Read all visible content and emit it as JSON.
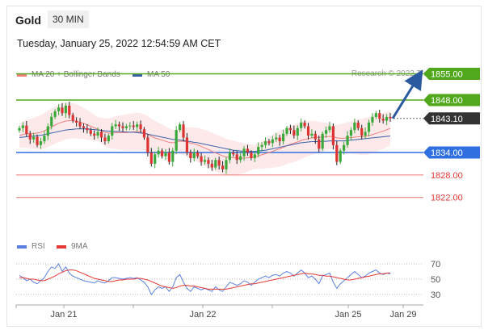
{
  "header": {
    "instrument": "Gold",
    "timeframe": "30 MIN",
    "datetime": "Tuesday, January 25, 2022 12:54:59 AM CET",
    "credit": "Research © 2022 Trading Central"
  },
  "legend_price": [
    {
      "label": "MA 20 + Bollinger Bands",
      "color": "#f08080"
    },
    {
      "label": "MA 50",
      "color": "#3a5fa8"
    }
  ],
  "legend_rsi": [
    {
      "label": "RSI",
      "color": "#5b7fe0"
    },
    {
      "label": "9MA",
      "color": "#e53935"
    }
  ],
  "chart_data": [
    {
      "type": "candlestick",
      "title": "",
      "ylim": [
        1819,
        1857
      ],
      "x_ticks": [
        "Jan 21",
        "Jan 22",
        "Jan 25",
        "Jan 29"
      ],
      "current_price": {
        "value": 1843.1,
        "label": "1843.10",
        "color": "#333333"
      },
      "levels": [
        {
          "value": 1855.0,
          "label": "1855.00",
          "color": "#52a81c",
          "kind": "resistance"
        },
        {
          "value": 1848.0,
          "label": "1848.00",
          "color": "#52a81c",
          "kind": "resistance"
        },
        {
          "value": 1834.0,
          "label": "1834.00",
          "color": "#2f6fe0",
          "kind": "pivot"
        },
        {
          "value": 1828.0,
          "label": "1828.00",
          "color": "#e53935",
          "kind": "support"
        },
        {
          "value": 1822.0,
          "label": "1822.00",
          "color": "#e53935",
          "kind": "support"
        }
      ],
      "forecast_arrow": {
        "from": 1843.1,
        "to": 1855.0,
        "color": "#2c5aa0"
      },
      "close": [
        1840.5,
        1841.2,
        1839.0,
        1837.5,
        1838.2,
        1836.0,
        1837.0,
        1838.5,
        1841.0,
        1843.5,
        1845.0,
        1846.0,
        1844.5,
        1846.5,
        1844.0,
        1842.5,
        1842.0,
        1841.0,
        1840.5,
        1840.0,
        1839.0,
        1838.5,
        1839.5,
        1838.0,
        1837.0,
        1838.5,
        1841.0,
        1841.5,
        1841.0,
        1840.5,
        1841.0,
        1841.2,
        1840.8,
        1841.5,
        1840.2,
        1838.0,
        1834.0,
        1831.0,
        1833.5,
        1834.5,
        1833.0,
        1834.0,
        1831.5,
        1834.5,
        1840.0,
        1841.5,
        1838.0,
        1834.0,
        1832.5,
        1834.0,
        1833.0,
        1831.5,
        1832.0,
        1831.0,
        1830.0,
        1832.0,
        1830.5,
        1829.5,
        1832.0,
        1834.0,
        1833.5,
        1832.0,
        1833.0,
        1835.0,
        1834.0,
        1832.5,
        1833.5,
        1835.5,
        1836.0,
        1837.0,
        1836.5,
        1837.5,
        1838.0,
        1837.0,
        1839.0,
        1840.5,
        1840.0,
        1838.5,
        1840.5,
        1842.0,
        1841.0,
        1838.5,
        1839.0,
        1837.5,
        1835.0,
        1839.0,
        1840.0,
        1841.0,
        1836.0,
        1831.5,
        1834.5,
        1836.0,
        1838.5,
        1840.0,
        1842.0,
        1840.5,
        1838.5,
        1839.5,
        1842.0,
        1843.5,
        1844.5,
        1843.0,
        1842.5,
        1843.5,
        1843.1
      ],
      "ma20": [
        1838.5,
        1838.8,
        1839.0,
        1839.0,
        1839.1,
        1839.2,
        1839.4,
        1839.8,
        1840.3,
        1840.8,
        1841.3,
        1841.8,
        1842.1,
        1842.4,
        1842.5,
        1842.5,
        1842.3,
        1842.1,
        1841.8,
        1841.4,
        1841.0,
        1840.6,
        1840.2,
        1839.8,
        1839.4,
        1839.2,
        1839.2,
        1839.3,
        1839.3,
        1839.3,
        1839.3,
        1839.4,
        1839.5,
        1839.6,
        1839.5,
        1839.3,
        1838.9,
        1838.3,
        1837.9,
        1837.6,
        1837.3,
        1837.0,
        1836.7,
        1836.6,
        1836.8,
        1837.0,
        1837.0,
        1836.8,
        1836.5,
        1836.3,
        1836.0,
        1835.6,
        1835.2,
        1834.8,
        1834.3,
        1833.9,
        1833.5,
        1833.1,
        1832.8,
        1832.7,
        1832.6,
        1832.5,
        1832.5,
        1832.5,
        1832.6,
        1832.7,
        1832.8,
        1833.1,
        1833.4,
        1833.7,
        1834.0,
        1834.3,
        1834.7,
        1835.0,
        1835.4,
        1835.8,
        1836.2,
        1836.5,
        1836.8,
        1837.2,
        1837.5,
        1837.7,
        1837.9,
        1838.0,
        1838.0,
        1838.1,
        1838.2,
        1838.3,
        1838.2,
        1837.9,
        1837.8,
        1837.8,
        1837.9,
        1838.0,
        1838.1,
        1838.2,
        1838.2,
        1838.3,
        1838.5,
        1838.8,
        1839.1,
        1839.4,
        1839.7,
        1840.1,
        1840.4
      ],
      "ma50": [
        1838.0,
        1838.1,
        1838.2,
        1838.3,
        1838.4,
        1838.5,
        1838.6,
        1838.8,
        1839.0,
        1839.2,
        1839.4,
        1839.6,
        1839.8,
        1840.0,
        1840.1,
        1840.2,
        1840.3,
        1840.3,
        1840.3,
        1840.3,
        1840.2,
        1840.1,
        1840.0,
        1839.9,
        1839.8,
        1839.7,
        1839.7,
        1839.6,
        1839.6,
        1839.5,
        1839.5,
        1839.4,
        1839.4,
        1839.3,
        1839.2,
        1839.1,
        1838.9,
        1838.7,
        1838.5,
        1838.3,
        1838.1,
        1837.9,
        1837.7,
        1837.5,
        1837.4,
        1837.3,
        1837.2,
        1837.0,
        1836.9,
        1836.7,
        1836.6,
        1836.4,
        1836.2,
        1836.0,
        1835.8,
        1835.6,
        1835.4,
        1835.2,
        1835.0,
        1834.8,
        1834.6,
        1834.5,
        1834.4,
        1834.3,
        1834.3,
        1834.3,
        1834.3,
        1834.4,
        1834.5,
        1834.6,
        1834.8,
        1835.0,
        1835.2,
        1835.4,
        1835.6,
        1835.8,
        1836.0,
        1836.2,
        1836.4,
        1836.6,
        1836.7,
        1836.8,
        1836.9,
        1836.9,
        1836.9,
        1837.0,
        1837.0,
        1837.1,
        1837.1,
        1837.1,
        1837.1,
        1837.1,
        1837.2,
        1837.3,
        1837.4,
        1837.5,
        1837.6,
        1837.7,
        1837.8,
        1837.9,
        1838.0,
        1838.1,
        1838.2,
        1838.3,
        1838.4
      ]
    },
    {
      "type": "line",
      "title": "",
      "ylim": [
        20,
        80
      ],
      "y_ticks": [
        70,
        50,
        30
      ],
      "rsi": [
        55,
        52,
        48,
        50,
        46,
        44,
        48,
        52,
        60,
        66,
        64,
        70,
        60,
        66,
        58,
        54,
        52,
        50,
        48,
        47,
        46,
        45,
        48,
        46,
        45,
        48,
        52,
        52,
        51,
        50,
        51,
        52,
        51,
        52,
        49,
        46,
        40,
        30,
        36,
        40,
        38,
        40,
        34,
        40,
        52,
        56,
        46,
        38,
        34,
        40,
        38,
        36,
        38,
        36,
        34,
        40,
        36,
        34,
        40,
        46,
        44,
        42,
        44,
        48,
        46,
        42,
        46,
        50,
        52,
        54,
        52,
        55,
        56,
        54,
        58,
        60,
        58,
        54,
        58,
        62,
        58,
        52,
        54,
        50,
        44,
        54,
        56,
        58,
        46,
        38,
        44,
        48,
        52,
        56,
        60,
        56,
        52,
        54,
        58,
        60,
        62,
        58,
        56,
        58,
        57
      ],
      "ma9": [
        52,
        52,
        51,
        50,
        50,
        49,
        48,
        48,
        50,
        52,
        54,
        57,
        59,
        61,
        62,
        62,
        61,
        59,
        57,
        55,
        53,
        51,
        50,
        49,
        48,
        47,
        47,
        48,
        49,
        49,
        50,
        50,
        50,
        51,
        51,
        50,
        49,
        47,
        45,
        43,
        41,
        40,
        39,
        38,
        39,
        41,
        42,
        42,
        41,
        41,
        40,
        39,
        38,
        37,
        37,
        37,
        37,
        37,
        37,
        38,
        39,
        40,
        41,
        42,
        43,
        44,
        44,
        45,
        46,
        47,
        48,
        49,
        50,
        51,
        52,
        53,
        54,
        55,
        56,
        57,
        58,
        57,
        57,
        56,
        55,
        55,
        54,
        54,
        53,
        52,
        51,
        50,
        49,
        49,
        50,
        51,
        52,
        53,
        54,
        55,
        56,
        57,
        57,
        58,
        58
      ]
    }
  ]
}
